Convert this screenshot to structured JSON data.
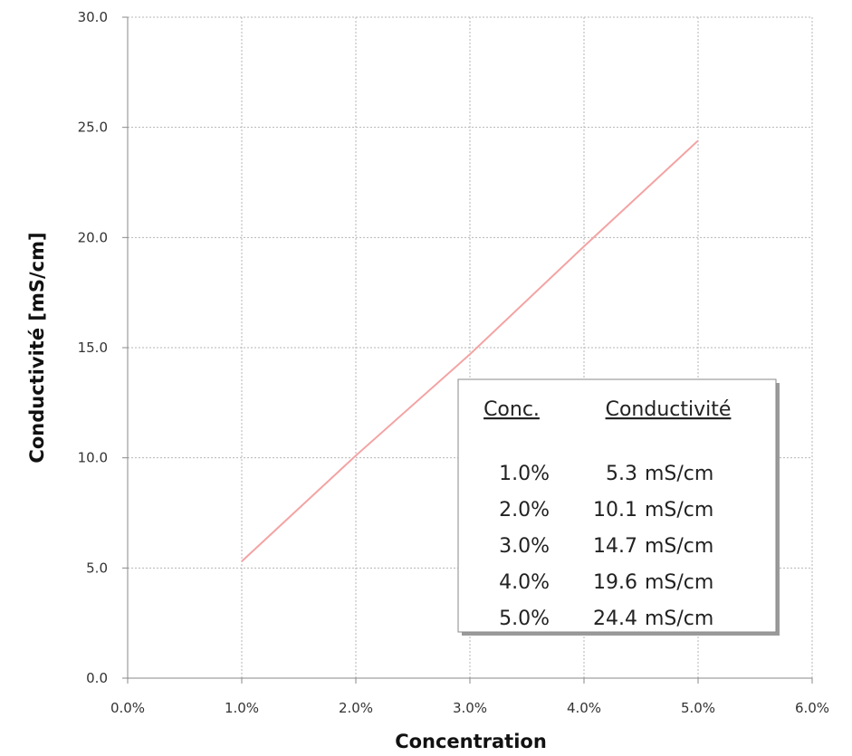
{
  "chart_data": {
    "type": "line",
    "xlabel": "Concentration",
    "ylabel": "Conductivité [mS/cm]",
    "xlim": [
      0.0,
      6.0
    ],
    "ylim": [
      0.0,
      30.0
    ],
    "x_ticks": [
      "0.0%",
      "1.0%",
      "2.0%",
      "3.0%",
      "4.0%",
      "5.0%",
      "6.0%"
    ],
    "y_ticks": [
      "0.0",
      "5.0",
      "10.0",
      "15.0",
      "20.0",
      "25.0",
      "30.0"
    ],
    "grid": true,
    "series": [
      {
        "color": "#f4a3a3",
        "x": [
          1.0,
          2.0,
          3.0,
          4.0,
          5.0
        ],
        "y": [
          5.3,
          10.1,
          14.7,
          19.6,
          24.4
        ]
      }
    ],
    "table": {
      "headers": [
        "Conc.",
        "Conductivité"
      ],
      "rows": [
        [
          "1.0%",
          "5.3",
          "mS/cm"
        ],
        [
          "2.0%",
          "10.1",
          "mS/cm"
        ],
        [
          "3.0%",
          "14.7",
          "mS/cm"
        ],
        [
          "4.0%",
          "19.6",
          "mS/cm"
        ],
        [
          "5.0%",
          "24.4",
          "mS/cm"
        ]
      ]
    }
  }
}
